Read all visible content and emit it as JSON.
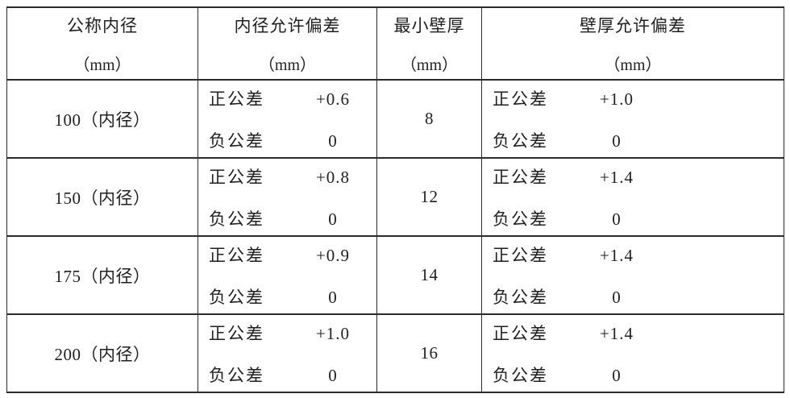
{
  "table": {
    "headers": [
      {
        "title": "公称内径",
        "unit": "（mm）"
      },
      {
        "title": "内径允许偏差",
        "unit": "（mm）"
      },
      {
        "title": "最小壁厚",
        "unit": "（mm）"
      },
      {
        "title": "壁厚允许偏差",
        "unit": "（mm）"
      }
    ],
    "labels": {
      "positive_tolerance": "正公差",
      "negative_tolerance": "负公差"
    },
    "rows": [
      {
        "nominal_inner_diameter": "100（内径）",
        "inner_diameter_pos": "+0.6",
        "inner_diameter_neg": "0",
        "min_wall_thickness": "8",
        "wall_thickness_pos": "+1.0",
        "wall_thickness_neg": "0"
      },
      {
        "nominal_inner_diameter": "150（内径）",
        "inner_diameter_pos": "+0.8",
        "inner_diameter_neg": "0",
        "min_wall_thickness": "12",
        "wall_thickness_pos": "+1.4",
        "wall_thickness_neg": "0"
      },
      {
        "nominal_inner_diameter": "175（内径）",
        "inner_diameter_pos": "+0.9",
        "inner_diameter_neg": "0",
        "min_wall_thickness": "14",
        "wall_thickness_pos": "+1.4",
        "wall_thickness_neg": "0"
      },
      {
        "nominal_inner_diameter": "200（内径）",
        "inner_diameter_pos": "+1.0",
        "inner_diameter_neg": "0",
        "min_wall_thickness": "16",
        "wall_thickness_pos": "+1.4",
        "wall_thickness_neg": "0"
      }
    ],
    "line_color": "#2b2b2b"
  }
}
